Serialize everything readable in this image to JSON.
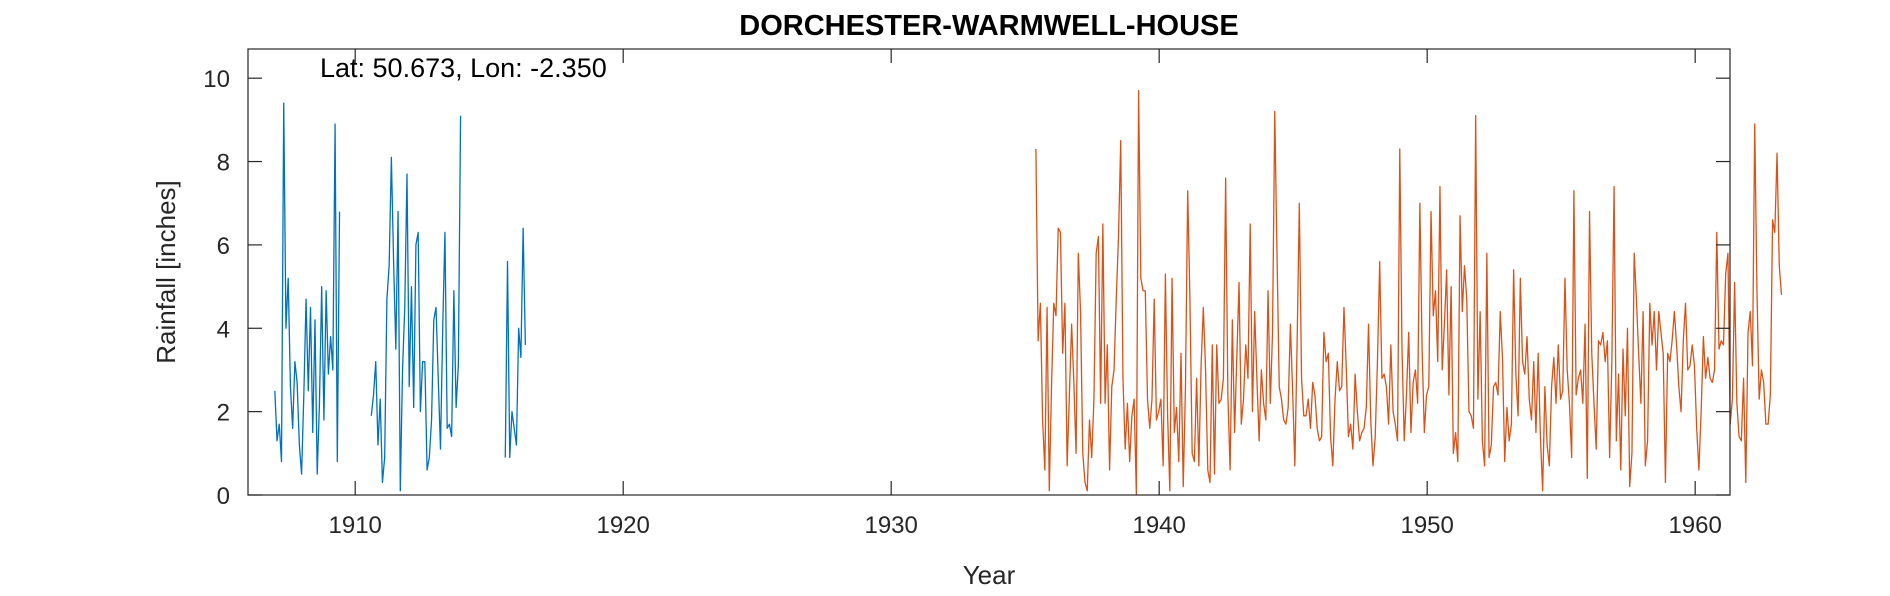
{
  "chart_data": {
    "type": "line",
    "title": "DORCHESTER-WARMWELL-HOUSE",
    "xlabel": "Year",
    "ylabel": "Rainfall [inches]",
    "annotation": "Lat: 50.673, Lon: -2.350",
    "xlim": [
      1906,
      1961.3
    ],
    "ylim": [
      0,
      10.7
    ],
    "xticks": [
      1910,
      1920,
      1930,
      1940,
      1950,
      1960
    ],
    "yticks": [
      0,
      2,
      4,
      6,
      8,
      10
    ],
    "grid": false,
    "legend": "none",
    "series": [
      {
        "color": "#0072BD",
        "segments": [
          {
            "x_start": 1907.0,
            "x_step": 0.0833,
            "values": [
              2.5,
              1.3,
              1.7,
              0.8,
              9.4,
              4.0,
              5.2,
              2.6,
              1.6,
              3.2,
              2.7,
              1.2,
              0.5,
              2.4,
              4.7,
              2.5,
              4.5,
              1.5,
              4.2,
              0.5,
              2.2,
              5.0,
              1.8,
              4.9,
              2.9,
              3.8,
              3.0,
              8.9,
              0.8,
              6.8
            ]
          },
          {
            "x_start": 1910.6,
            "x_step": 0.0833,
            "values": [
              1.9,
              2.4,
              3.2,
              1.2,
              2.3,
              0.3,
              0.9,
              4.7,
              5.5,
              8.1,
              5.6,
              3.5,
              6.8,
              0.1,
              3.0,
              4.5,
              7.7,
              2.6,
              5.0,
              2.1,
              6.0,
              6.3,
              2.0,
              3.2,
              3.2,
              0.6,
              0.9,
              1.8,
              4.2,
              4.5,
              2.8,
              1.1,
              4.0,
              6.3,
              1.6,
              1.7,
              1.4,
              4.9,
              2.1,
              3.1,
              9.1
            ]
          },
          {
            "x_start": 1915.6,
            "x_step": 0.0833,
            "values": [
              0.9,
              5.6,
              0.9,
              2.0,
              1.6,
              1.2,
              4.0,
              3.3,
              6.4,
              3.6
            ]
          }
        ]
      },
      {
        "color": "#D95319",
        "segments": [
          {
            "x_start": 1935.4,
            "x_step": 0.0833,
            "values": [
              8.3,
              3.7,
              4.6,
              1.8,
              0.6,
              4.5,
              0.1,
              2.6,
              4.6,
              4.3,
              6.4,
              6.3,
              3.4,
              4.6,
              0.7,
              2.4,
              4.1,
              2.7,
              1.0,
              5.8,
              4.4,
              1.0,
              0.3,
              0.1,
              1.8,
              0.9,
              2.3,
              5.8,
              6.2,
              2.2,
              6.5,
              2.2,
              3.6,
              0.6,
              2.6,
              3.0,
              4.7,
              6.2,
              8.5,
              2.8,
              1.1,
              2.2,
              0.8,
              1.9,
              2.3,
              0.0,
              9.7,
              5.2,
              4.9,
              4.9,
              2.3,
              1.6,
              2.3,
              4.7,
              1.8,
              2.0,
              2.3,
              0.7,
              5.3,
              1.9,
              0.1,
              5.2,
              1.5,
              2.1,
              0.8,
              3.4,
              0.2,
              2.6,
              7.3,
              4.7,
              1.0,
              0.8,
              2.8,
              0.7,
              3.1,
              4.5,
              3.0,
              0.6,
              0.3,
              3.6,
              0.5,
              3.6,
              2.2,
              2.3,
              2.8,
              7.6,
              2.4,
              0.6,
              4.2,
              1.5,
              3.3,
              5.1,
              1.7,
              2.3,
              3.6,
              2.8,
              6.5,
              2.0,
              4.4,
              2.8,
              1.3,
              3.0,
              2.2,
              1.8,
              4.9,
              2.2,
              3.9,
              9.2,
              5.8,
              2.6,
              2.3,
              1.8,
              1.7,
              2.1,
              4.1,
              2.5,
              0.7,
              3.6,
              7.0,
              2.8,
              1.9,
              1.9,
              2.3,
              1.6,
              2.7,
              2.4,
              1.6,
              1.3,
              1.4,
              3.9,
              3.2,
              3.4,
              1.4,
              0.7,
              2.3,
              3.2,
              2.5,
              2.6,
              4.5,
              3.1,
              1.4,
              1.7,
              1.1,
              2.9,
              2.0,
              1.3,
              1.5,
              1.6,
              2.1,
              4.1,
              1.8,
              0.7,
              1.4,
              3.2,
              5.6,
              2.8,
              2.9,
              2.6,
              1.7,
              3.6,
              2.0,
              1.7,
              1.3,
              8.3,
              3.5,
              1.3,
              2.4,
              3.9,
              1.5,
              2.7,
              3.0,
              2.2,
              7.0,
              3.5,
              1.5,
              2.4,
              2.6,
              6.8,
              4.3,
              4.9,
              3.2,
              7.4,
              3.0,
              4.1,
              5.4,
              2.4,
              5.0,
              1.0,
              1.5,
              0.8,
              6.7,
              4.4,
              5.5,
              4.7,
              2.0,
              1.9,
              1.6,
              9.1,
              2.3,
              4.4,
              1.3,
              0.7,
              5.8,
              0.9,
              1.2,
              2.6,
              2.7,
              2.4,
              4.4,
              3.3,
              0.8,
              2.1,
              1.3,
              1.7,
              5.4,
              2.9,
              1.9,
              5.2,
              3.2,
              2.9,
              3.8,
              2.3,
              1.8,
              3.2,
              1.5,
              3.4,
              1.4,
              0.1,
              2.6,
              1.2,
              0.7,
              2.6,
              3.3,
              2.2,
              3.6,
              2.3,
              2.5,
              5.2,
              3.0,
              2.2,
              0.9,
              7.3,
              2.4,
              2.8,
              3.0,
              2.2,
              4.1,
              0.4,
              6.8,
              3.4,
              2.2,
              1.1,
              3.7,
              3.6,
              3.9,
              3.2,
              3.7,
              0.9,
              3.2,
              7.4,
              1.3,
              2.9,
              0.6,
              3.5,
              1.9,
              4.0,
              0.2,
              1.0,
              5.8,
              4.7,
              3.4,
              2.2,
              4.4,
              0.7,
              1.3,
              4.6,
              3.6,
              4.4,
              3.0,
              4.4,
              3.9,
              3.4,
              0.3,
              3.4,
              3.2,
              3.7,
              4.4,
              3.6,
              2.6,
              2.0,
              3.7,
              4.6,
              3.0,
              3.1,
              3.6,
              3.1,
              1.6,
              0.6,
              2.0,
              3.8,
              2.8,
              3.3,
              2.8,
              2.7,
              3.0,
              6.3,
              3.5,
              3.7,
              3.6,
              5.3,
              5.8,
              1.7,
              2.3,
              5.1,
              2.2,
              1.4,
              1.3,
              2.8,
              0.3,
              3.9,
              4.4,
              3.1,
              8.9,
              4.9,
              2.3,
              3.0,
              2.7,
              1.7,
              1.7,
              2.4,
              6.6,
              6.3,
              8.2,
              5.5,
              4.8
            ]
          }
        ]
      }
    ]
  }
}
